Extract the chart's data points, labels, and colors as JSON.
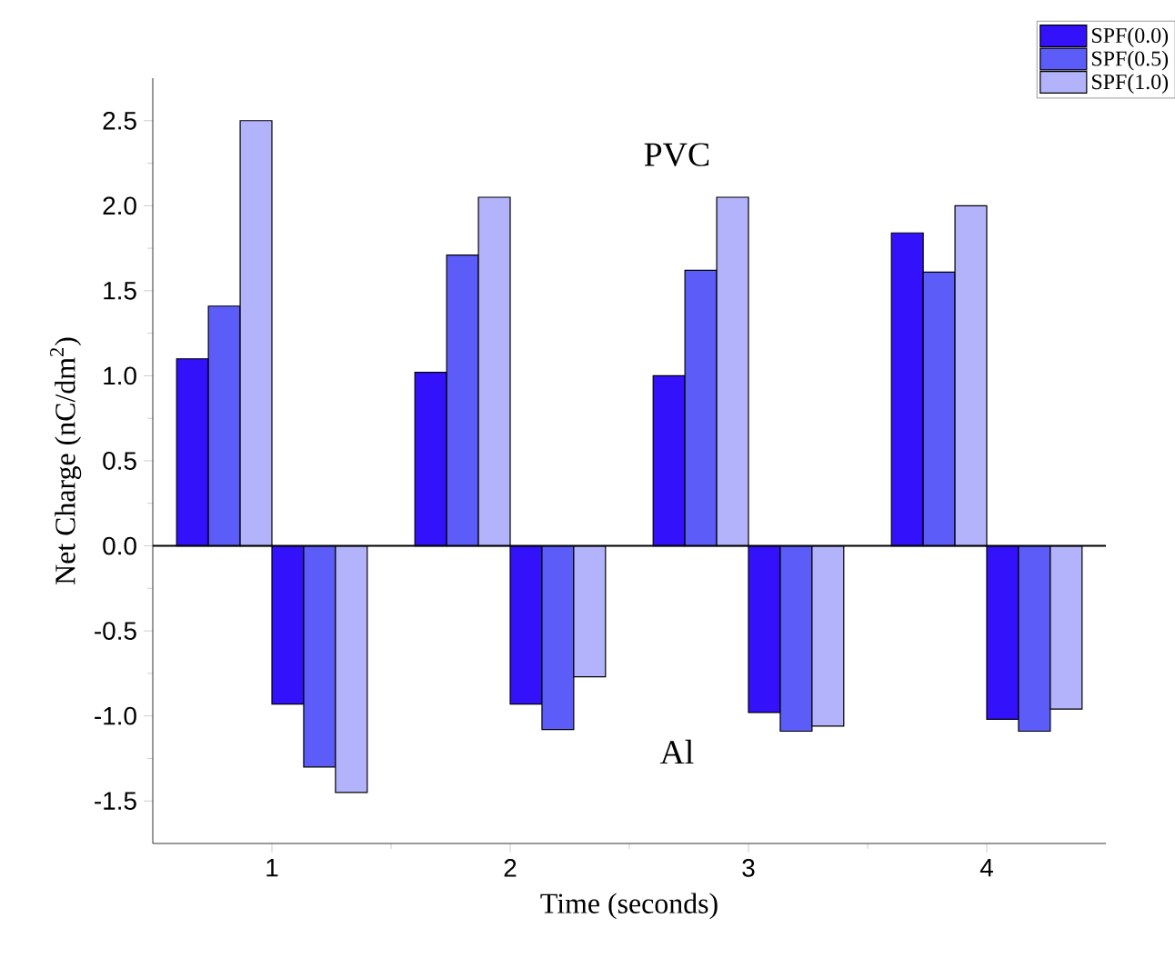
{
  "chart_data": {
    "type": "bar",
    "xlabel": "Time (seconds)",
    "ylabel": "Net Charge (nC/dm$^{2}$)",
    "x": [
      1,
      2,
      3,
      4
    ],
    "xlim": [
      0.5,
      4.5
    ],
    "xticks": [
      1,
      2,
      3,
      4
    ],
    "ylim": [
      -1.75,
      2.75
    ],
    "yticks": [
      -1.5,
      {
        "value": -1,
        "label": "-1.0"
      },
      -0.5,
      {
        "value": 0,
        "label": "0.0"
      },
      0.5,
      {
        "value": 1,
        "label": "1.0"
      },
      1.5,
      {
        "value": 2,
        "label": "2.0"
      },
      2.5
    ],
    "series": [
      {
        "name": "SPF(0.0)",
        "color": "#3311fa",
        "values": [
          1.1,
          1.02,
          1.0,
          1.84
        ]
      },
      {
        "name": "SPF(0.5)",
        "color": "#5c5cf8",
        "values": [
          1.41,
          1.71,
          1.62,
          1.61
        ]
      },
      {
        "name": "SPF(1.0)",
        "color": "#b3b3fb",
        "values": [
          2.5,
          2.05,
          2.05,
          2.0
        ]
      },
      {
        "color": "#3311fa",
        "values": [
          -0.93,
          -0.93,
          -0.98,
          -1.02
        ]
      },
      {
        "color": "#5c5cf8",
        "values": [
          -1.3,
          -1.08,
          -1.09,
          -1.09
        ]
      },
      {
        "color": "#b3b3fb",
        "values": [
          -1.45,
          -0.77,
          -1.06,
          -0.96
        ]
      }
    ],
    "ref_lines": [
      {
        "axis": "y",
        "value": 0,
        "color": "#000000"
      }
    ],
    "annotations": [
      "PVC",
      "Al"
    ],
    "legend": "top right",
    "grid": false
  }
}
